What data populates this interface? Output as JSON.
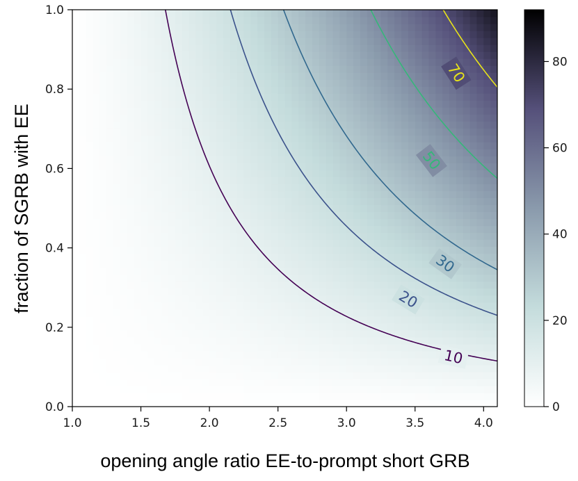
{
  "chart_data": {
    "type": "heatmap",
    "xlabel": "opening angle ratio EE-to-prompt short GRB",
    "ylabel": "fraction of SGRB with EE",
    "xlim": [
      1.0,
      4.1
    ],
    "ylim": [
      0.0,
      1.0
    ],
    "x_ticks": [
      "1.0",
      "1.5",
      "2.0",
      "2.5",
      "3.0",
      "3.5",
      "4.0"
    ],
    "y_ticks": [
      "0.0",
      "0.2",
      "0.4",
      "0.6",
      "0.8",
      "1.0"
    ],
    "colorbar": {
      "range": [
        0,
        92
      ],
      "ticks": [
        "0",
        "20",
        "40",
        "60",
        "80"
      ],
      "colormap": "bone_r"
    },
    "field": "value = 5.5 * f * (r^2 - 1)",
    "contours": [
      {
        "level": 10,
        "label": "10",
        "color": "#440154",
        "label_at": [
          3.78,
          0.125
        ]
      },
      {
        "level": 20,
        "label": "20",
        "color": "#3b528b",
        "label_at": [
          3.45,
          0.27
        ]
      },
      {
        "level": 30,
        "label": "30",
        "color": "#31688e",
        "label_at": [
          3.72,
          0.36
        ]
      },
      {
        "level": 50,
        "label": "50",
        "color": "#35b779",
        "label_at": [
          3.62,
          0.62
        ]
      },
      {
        "level": 70,
        "label": "70",
        "color": "#e8e419",
        "label_at": [
          3.8,
          0.84
        ]
      }
    ],
    "grid": false
  }
}
